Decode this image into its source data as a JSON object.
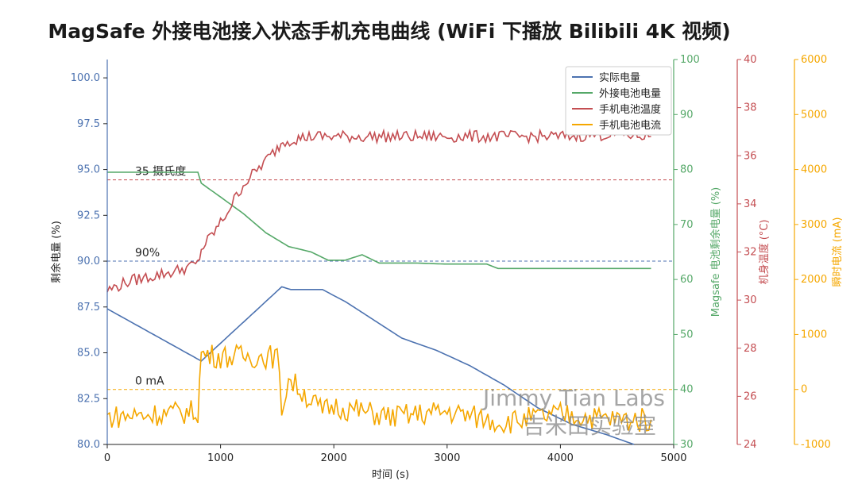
{
  "chart_data": {
    "type": "line",
    "title": "MagSafe 外接电池接入状态手机充电曲线 (WiFi 下播放 Bilibili 4K 视频)",
    "xlabel": "时间 (s)",
    "xlim": [
      0,
      5000
    ],
    "x_ticks": [
      "0",
      "1000",
      "2000",
      "3000",
      "4000",
      "5000"
    ],
    "axes": {
      "left": {
        "label": "剩余电量 (%)",
        "ylim": [
          80,
          101
        ],
        "ticks": [
          "80.0",
          "82.5",
          "85.0",
          "87.5",
          "90.0",
          "92.5",
          "95.0",
          "97.5",
          "100.0"
        ],
        "color": "#4c72b0"
      },
      "right1": {
        "label": "Magsafe 电池剩余电量 (%)",
        "ylim": [
          30,
          100
        ],
        "ticks": [
          "30",
          "40",
          "50",
          "60",
          "70",
          "80",
          "90",
          "100"
        ],
        "color": "#55a868"
      },
      "right2": {
        "label": "机身温度 (°C)",
        "ylim": [
          24,
          40
        ],
        "ticks": [
          "24",
          "26",
          "28",
          "30",
          "32",
          "34",
          "36",
          "38",
          "40"
        ],
        "color": "#c44e52"
      },
      "right3": {
        "label": "瞬时电流 (mA)",
        "ylim": [
          -1000,
          6000
        ],
        "ticks": [
          "-1000",
          "0",
          "1000",
          "2000",
          "3000",
          "4000",
          "5000",
          "6000"
        ],
        "color": "#f5a700"
      }
    },
    "series": [
      {
        "name": "实际电量",
        "axis": "left",
        "color": "#4c72b0",
        "x": [
          0,
          830,
          1540,
          1620,
          1900,
          2100,
          2300,
          2600,
          2900,
          3200,
          3500,
          3800,
          4100,
          4400,
          4650
        ],
        "y": [
          87.4,
          84.55,
          88.6,
          88.45,
          88.45,
          87.8,
          87.0,
          85.8,
          85.15,
          84.3,
          83.25,
          82.0,
          81.1,
          80.55,
          80.0
        ]
      },
      {
        "name": "外接电池电量",
        "axis": "right1",
        "color": "#55a868",
        "x": [
          0,
          800,
          830,
          1000,
          1200,
          1400,
          1600,
          1800,
          1950,
          2100,
          2250,
          2400,
          2700,
          3000,
          3350,
          3450,
          3600,
          4800
        ],
        "y": [
          79.5,
          79.5,
          77.5,
          75.0,
          72.0,
          68.5,
          66.0,
          65.0,
          63.5,
          63.5,
          64.5,
          63.0,
          63.0,
          62.8,
          62.8,
          62.0,
          62.0,
          62.0
        ]
      },
      {
        "name": "手机电池温度",
        "axis": "right2",
        "color": "#c44e52",
        "x": [
          0,
          200,
          400,
          600,
          800,
          830,
          1000,
          1200,
          1400,
          1500,
          1550,
          1650,
          1800,
          1900,
          2000,
          2300,
          2600,
          3000,
          3500,
          4000,
          4500,
          4800
        ],
        "y": [
          30.4,
          30.8,
          31.0,
          31.2,
          31.5,
          32.1,
          33.2,
          34.8,
          35.8,
          36.3,
          36.6,
          36.7,
          36.8,
          36.8,
          36.8,
          36.8,
          36.8,
          36.8,
          36.8,
          36.8,
          36.9,
          36.8
        ]
      },
      {
        "name": "手机电池电流",
        "axis": "right3",
        "color": "#f5a700",
        "x": [
          0,
          800,
          830,
          1000,
          1500,
          1540,
          1600,
          1900,
          2000,
          2500,
          3000,
          3500,
          4000,
          4500,
          4800
        ],
        "y": [
          -500,
          -400,
          650,
          600,
          600,
          -350,
          200,
          -400,
          -300,
          -500,
          -400,
          -600,
          -450,
          -550,
          -550
        ]
      }
    ],
    "reference_lines": [
      {
        "label": "35 摄氏度",
        "axis": "right2",
        "value": 35,
        "color": "#c44e52"
      },
      {
        "label": "90%",
        "axis": "left",
        "value": 90,
        "color": "#4c72b0"
      },
      {
        "label": "0 mA",
        "axis": "right3",
        "value": 0,
        "color": "#f5a700"
      }
    ],
    "legend": "top-right",
    "grid": false
  },
  "watermark": {
    "line1": "Jimmy Tian Labs",
    "line2": "吉米田实验室"
  }
}
